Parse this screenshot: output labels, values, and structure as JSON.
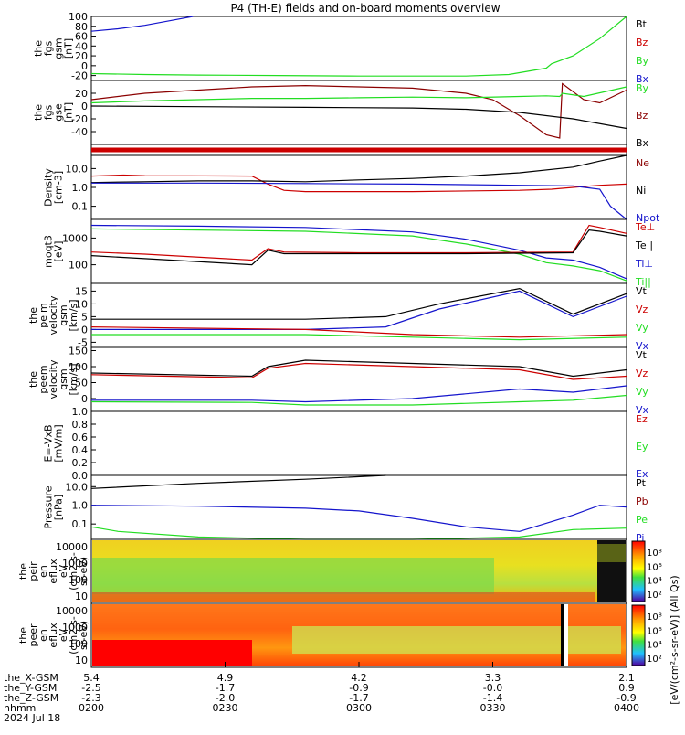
{
  "title": "P4 (TH-E) fields and on-board moments overview",
  "colors": {
    "black": "#000000",
    "red": "#cc0000",
    "green": "#22dd22",
    "blue": "#1414cc",
    "darkred": "#8b0000"
  },
  "chart_data": [
    {
      "type": "line",
      "ylabel": [
        "the",
        "fgs",
        "gsm",
        "[nT]"
      ],
      "ylim": [
        -30,
        100
      ],
      "yticks": [
        "100",
        "80",
        "60",
        "40",
        "20",
        "0",
        "-20"
      ],
      "legend": [
        {
          "name": "Bt",
          "color": "black"
        },
        {
          "name": "Bz",
          "color": "red"
        },
        {
          "name": "By",
          "color": "green"
        },
        {
          "name": "Bx",
          "color": "blue"
        }
      ],
      "series": [
        {
          "name": "Bx",
          "color": "blue",
          "x": [
            0,
            0.05,
            0.1,
            0.15,
            0.19
          ],
          "y": [
            70,
            75,
            82,
            92,
            100
          ]
        },
        {
          "name": "By",
          "color": "green",
          "x": [
            0,
            0.1,
            0.2,
            0.35,
            0.5,
            0.7,
            0.78,
            0.85,
            0.86,
            0.9,
            0.95,
            1.0
          ],
          "y": [
            -16,
            -18,
            -19,
            -20,
            -21,
            -21,
            -18,
            -5,
            4,
            20,
            55,
            100
          ]
        }
      ]
    },
    {
      "type": "line",
      "ylabel": [
        "the",
        "fgs",
        "gse",
        "[nT]"
      ],
      "ylim": [
        -60,
        40
      ],
      "yticks": [
        "20",
        "0",
        "-20",
        "-40"
      ],
      "legend": [
        {
          "name": "By",
          "color": "green"
        },
        {
          "name": "Bz",
          "color": "darkred"
        },
        {
          "name": "Bx",
          "color": "black"
        }
      ],
      "series": [
        {
          "name": "Bz",
          "color": "darkred",
          "x": [
            0,
            0.1,
            0.2,
            0.3,
            0.4,
            0.5,
            0.6,
            0.7,
            0.75,
            0.8,
            0.85,
            0.875,
            0.88,
            0.92,
            0.95,
            1.0
          ],
          "y": [
            10,
            20,
            25,
            30,
            32,
            30,
            28,
            20,
            10,
            -15,
            -45,
            -50,
            35,
            10,
            5,
            25
          ]
        },
        {
          "name": "By",
          "color": "green",
          "x": [
            0,
            0.1,
            0.2,
            0.3,
            0.4,
            0.5,
            0.6,
            0.7,
            0.8,
            0.85,
            0.875,
            0.88,
            0.92,
            1.0
          ],
          "y": [
            5,
            8,
            10,
            12,
            12,
            13,
            14,
            13,
            15,
            16,
            15,
            20,
            15,
            30
          ]
        },
        {
          "name": "Bx",
          "color": "black",
          "x": [
            0,
            0.2,
            0.4,
            0.6,
            0.7,
            0.8,
            0.9,
            1.0
          ],
          "y": [
            0,
            -1,
            -2,
            -3,
            -5,
            -10,
            -20,
            -35
          ]
        }
      ]
    },
    {
      "type": "line",
      "ylabel": [],
      "ylim": [
        0,
        1
      ],
      "yticks": [],
      "legend": [],
      "series": [
        {
          "name": "mode",
          "color": "red",
          "x": [
            0,
            1
          ],
          "y": [
            0.5,
            0.5
          ]
        }
      ]
    },
    {
      "type": "line",
      "log": true,
      "ylabel": [
        "Density",
        "[cm-3]"
      ],
      "ylim": [
        0.02,
        50
      ],
      "yticks": [
        "10.0",
        "1.0",
        "0.1"
      ],
      "legend": [
        {
          "name": "Ne",
          "color": "darkred"
        },
        {
          "name": "Ni",
          "color": "black"
        },
        {
          "name": "Npot",
          "color": "blue"
        }
      ],
      "series": [
        {
          "name": "Ne",
          "color": "red",
          "x": [
            0,
            0.06,
            0.1,
            0.3,
            0.33,
            0.36,
            0.4,
            0.6,
            0.8,
            0.86,
            0.9,
            0.95,
            1.0
          ],
          "y": [
            4,
            4.5,
            4.2,
            4,
            1.5,
            0.7,
            0.6,
            0.6,
            0.7,
            0.8,
            1.0,
            1.3,
            1.5
          ]
        },
        {
          "name": "Ni",
          "color": "black",
          "x": [
            0,
            0.1,
            0.2,
            0.3,
            0.4,
            0.5,
            0.6,
            0.7,
            0.8,
            0.9,
            0.95,
            1.0
          ],
          "y": [
            1.8,
            2.0,
            2.2,
            2.2,
            2.0,
            2.5,
            3,
            4,
            6,
            12,
            25,
            50
          ]
        },
        {
          "name": "Npot",
          "color": "blue",
          "x": [
            0,
            0.2,
            0.4,
            0.6,
            0.8,
            0.9,
            0.95,
            0.97,
            1.0
          ],
          "y": [
            1.7,
            1.7,
            1.6,
            1.5,
            1.3,
            1.2,
            0.8,
            0.1,
            0.02
          ]
        }
      ]
    },
    {
      "type": "line",
      "log": true,
      "ylabel": [
        "moqt3",
        "[eV]"
      ],
      "ylim": [
        20,
        5000
      ],
      "yticks": [
        "1000",
        "100"
      ],
      "legend": [
        {
          "name": "Te⊥",
          "color": "red"
        },
        {
          "name": "Te||",
          "color": "black"
        },
        {
          "name": "Ti⊥",
          "color": "blue"
        },
        {
          "name": "Ti||",
          "color": "green"
        }
      ],
      "series": [
        {
          "name": "Ti⊥",
          "color": "blue",
          "x": [
            0,
            0.2,
            0.4,
            0.6,
            0.7,
            0.8,
            0.85,
            0.9,
            0.95,
            1.0
          ],
          "y": [
            3000,
            2800,
            2500,
            1700,
            900,
            350,
            180,
            150,
            80,
            30
          ]
        },
        {
          "name": "Ti||",
          "color": "green",
          "x": [
            0,
            0.2,
            0.4,
            0.6,
            0.7,
            0.8,
            0.85,
            0.9,
            0.95,
            1.0
          ],
          "y": [
            2200,
            2000,
            1800,
            1200,
            600,
            250,
            120,
            90,
            60,
            25
          ]
        },
        {
          "name": "Te⊥",
          "color": "red",
          "x": [
            0,
            0.1,
            0.3,
            0.33,
            0.36,
            0.5,
            0.7,
            0.9,
            0.93,
            0.95,
            1.0
          ],
          "y": [
            300,
            250,
            150,
            400,
            300,
            280,
            280,
            300,
            3000,
            2500,
            1500
          ]
        },
        {
          "name": "Te||",
          "color": "black",
          "x": [
            0,
            0.1,
            0.3,
            0.33,
            0.36,
            0.5,
            0.7,
            0.9,
            0.93,
            0.95,
            1.0
          ],
          "y": [
            220,
            170,
            100,
            350,
            260,
            260,
            260,
            280,
            2000,
            1800,
            1200
          ]
        }
      ]
    },
    {
      "type": "line",
      "ylabel": [
        "the",
        "peim",
        "velocity",
        "gsm",
        "[km/s]"
      ],
      "ylim": [
        -7,
        18
      ],
      "yticks": [
        "15",
        "10",
        "5",
        "0",
        "-5"
      ],
      "legend": [
        {
          "name": "Vt",
          "color": "black"
        },
        {
          "name": "Vz",
          "color": "red"
        },
        {
          "name": "Vy",
          "color": "green"
        },
        {
          "name": "Vx",
          "color": "blue"
        }
      ],
      "series": [
        {
          "name": "Vt",
          "color": "black",
          "x": [
            0,
            0.2,
            0.4,
            0.55,
            0.65,
            0.8,
            0.9,
            1.0
          ],
          "y": [
            4,
            4,
            4,
            5,
            10,
            16,
            6,
            14
          ]
        },
        {
          "name": "Vx",
          "color": "blue",
          "x": [
            0,
            0.4,
            0.55,
            0.65,
            0.8,
            0.9,
            1.0
          ],
          "y": [
            0,
            0,
            1,
            8,
            15,
            5,
            13
          ]
        },
        {
          "name": "Vz",
          "color": "red",
          "x": [
            0,
            0.4,
            0.6,
            0.8,
            1.0
          ],
          "y": [
            1,
            0,
            -2,
            -3,
            -2
          ]
        },
        {
          "name": "Vy",
          "color": "green",
          "x": [
            0,
            0.4,
            0.6,
            0.8,
            1.0
          ],
          "y": [
            -2,
            -2,
            -3,
            -4,
            -3
          ]
        }
      ]
    },
    {
      "type": "line",
      "ylabel": [
        "the",
        "peem",
        "velocity",
        "gsm",
        "[km/s]"
      ],
      "ylim": [
        -40,
        160
      ],
      "yticks": [
        "150",
        "100",
        "50",
        "0",
        "-50"
      ],
      "legend": [
        {
          "name": "Vt",
          "color": "black"
        },
        {
          "name": "Vz",
          "color": "red"
        },
        {
          "name": "Vy",
          "color": "green"
        },
        {
          "name": "Vx",
          "color": "blue"
        }
      ],
      "series": [
        {
          "name": "Vt",
          "color": "black",
          "x": [
            0,
            0.3,
            0.33,
            0.4,
            0.6,
            0.8,
            0.9,
            1.0
          ],
          "y": [
            80,
            70,
            100,
            120,
            110,
            100,
            70,
            90
          ]
        },
        {
          "name": "Vz",
          "color": "red",
          "x": [
            0,
            0.3,
            0.33,
            0.4,
            0.6,
            0.8,
            0.9,
            1.0
          ],
          "y": [
            75,
            65,
            95,
            110,
            100,
            90,
            60,
            70
          ]
        },
        {
          "name": "Vx",
          "color": "blue",
          "x": [
            0,
            0.3,
            0.4,
            0.6,
            0.8,
            0.9,
            1.0
          ],
          "y": [
            -5,
            -5,
            -10,
            0,
            30,
            20,
            40
          ]
        },
        {
          "name": "Vy",
          "color": "green",
          "x": [
            0,
            0.3,
            0.4,
            0.6,
            0.8,
            0.9,
            1.0
          ],
          "y": [
            -10,
            -12,
            -20,
            -20,
            -10,
            -5,
            10
          ]
        }
      ]
    },
    {
      "type": "line",
      "ylabel": [
        "E=-VxB",
        "[mV/m]"
      ],
      "ylim": [
        0,
        1
      ],
      "yticks": [
        "1.0",
        "0.8",
        "0.6",
        "0.4",
        "0.2",
        "0.0"
      ],
      "legend": [
        {
          "name": "Ez",
          "color": "red"
        },
        {
          "name": "Ey",
          "color": "green"
        },
        {
          "name": "Ex",
          "color": "blue"
        }
      ],
      "series": []
    },
    {
      "type": "line",
      "log": true,
      "ylabel": [
        "Pressure",
        "[nPa]"
      ],
      "ylim": [
        0.015,
        40
      ],
      "yticks": [
        "10.0",
        "1.0",
        "0.1"
      ],
      "legend": [
        {
          "name": "Pt",
          "color": "black"
        },
        {
          "name": "Pb",
          "color": "darkred"
        },
        {
          "name": "Pe",
          "color": "green"
        },
        {
          "name": "Pi",
          "color": "blue"
        }
      ],
      "series": [
        {
          "name": "Pt",
          "color": "black",
          "x": [
            0,
            0.2,
            0.4,
            0.55
          ],
          "y": [
            8,
            15,
            25,
            40
          ]
        },
        {
          "name": "Pi",
          "color": "blue",
          "x": [
            0,
            0.2,
            0.4,
            0.5,
            0.6,
            0.7,
            0.8,
            0.9,
            0.95,
            1.0
          ],
          "y": [
            1.0,
            0.9,
            0.7,
            0.5,
            0.2,
            0.07,
            0.04,
            0.3,
            1.0,
            0.8
          ]
        },
        {
          "name": "Pe",
          "color": "green",
          "x": [
            0,
            0.05,
            0.2,
            0.4,
            0.6,
            0.8,
            0.9,
            1.0
          ],
          "y": [
            0.07,
            0.04,
            0.02,
            0.015,
            0.015,
            0.02,
            0.05,
            0.06
          ]
        }
      ]
    },
    {
      "type": "heatmap",
      "ylabel": [
        "the",
        "peir",
        "en",
        "eflux",
        "eV",
        "(cm2-s-",
        "sr-eV)"
      ],
      "yticks": [
        "10000",
        "1000",
        "100",
        "10"
      ],
      "cbar_ticks": [
        "10⁸",
        "10⁶",
        "10⁴",
        "10²"
      ]
    },
    {
      "type": "heatmap",
      "ylabel": [
        "the",
        "peer",
        "en",
        "eflux",
        "eV",
        "(cm2-s-",
        "sr-eV)"
      ],
      "yticks": [
        "10000",
        "1000",
        "100",
        "10"
      ],
      "cbar_ticks": [
        "10⁸",
        "10⁶",
        "10⁴",
        "10²"
      ]
    }
  ],
  "cbar_label": "[eV/(cm²-s-sr-eV)] (All Qs)",
  "orbit": {
    "labels": [
      "the_X-GSM",
      "the_Y-GSM",
      "the_Z-GSM",
      "hhmm",
      "2024 Jul 18"
    ],
    "columns": [
      [
        "5.4",
        "-2.5",
        "-2.3",
        "0200"
      ],
      [
        "4.9",
        "-1.7",
        "-2.0",
        "0230"
      ],
      [
        "4.2",
        "-0.9",
        "-1.7",
        "0300"
      ],
      [
        "3.3",
        "-0.0",
        "-1.4",
        "0330"
      ],
      [
        "2.1",
        "0.9",
        "-0.9",
        "0400"
      ]
    ]
  }
}
